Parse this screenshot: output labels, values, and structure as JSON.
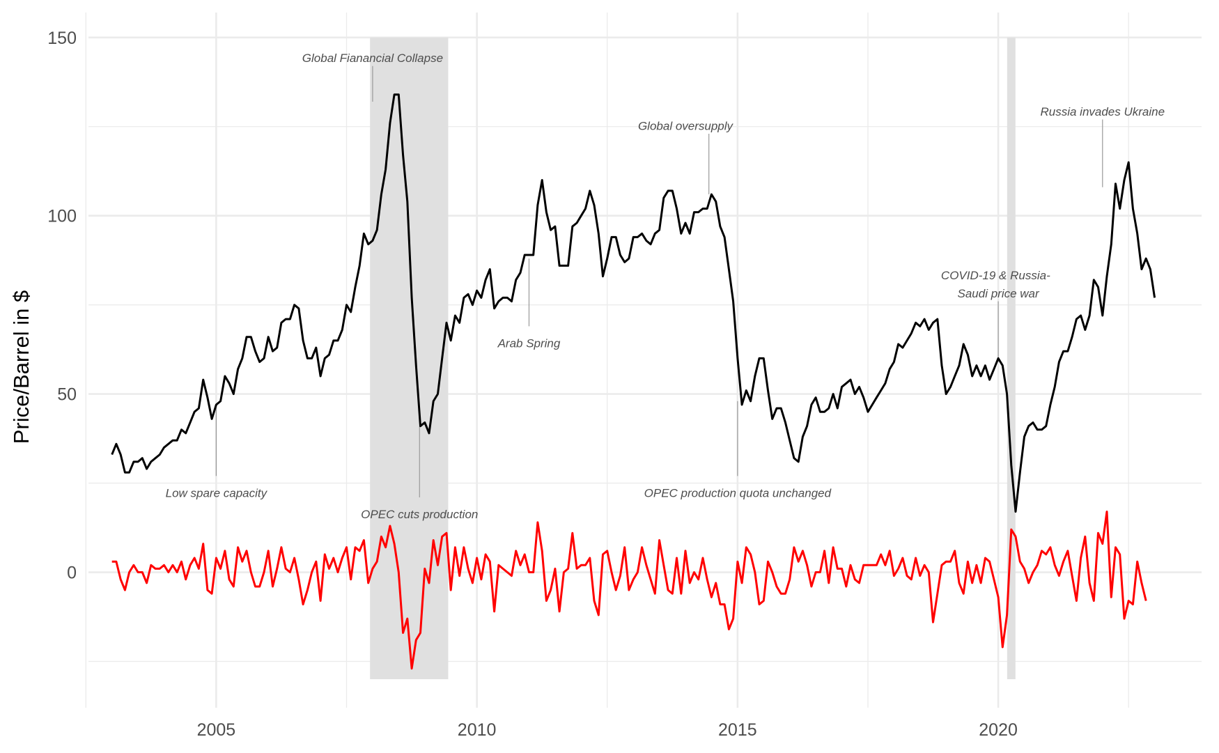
{
  "chart_data": {
    "type": "line",
    "title": "",
    "xlabel": "",
    "ylabel": "Price/Barrel in $",
    "xlim": [
      2002.55,
      2023.9
    ],
    "ylim": [
      -38,
      157
    ],
    "x_ticks": [
      2005,
      2010,
      2015,
      2020
    ],
    "x_tick_labels": [
      "2005",
      "2010",
      "2015",
      "2020"
    ],
    "x_minor_ticks": [
      2002.5,
      2007.5,
      2012.5,
      2017.5,
      2022.5
    ],
    "y_ticks": [
      0,
      50,
      100,
      150
    ],
    "y_tick_labels": [
      "0",
      "50",
      "100",
      "150"
    ],
    "y_minor_ticks": [
      -25,
      25,
      75,
      125
    ],
    "grid": true,
    "legend": "none",
    "colors": {
      "price": "#000000",
      "change": "#ff0000",
      "shade": "#e0e0e0",
      "grid": "#ebebeb",
      "annotation": "#4d4d4d",
      "annotation_line": "#999999"
    },
    "shaded_periods": [
      {
        "x0": 2007.95,
        "x1": 2009.45,
        "y0": -30,
        "y1": 150
      },
      {
        "x0": 2020.17,
        "x1": 2020.33,
        "y0": -30,
        "y1": 150
      }
    ],
    "series": [
      {
        "type": "line",
        "x_start": 2003.0,
        "x_step": 0.083333,
        "values": [
          33,
          36,
          33,
          28,
          28,
          31,
          31,
          32,
          29,
          31,
          32,
          33,
          35,
          36,
          37,
          37,
          40,
          39,
          42,
          45,
          46,
          54,
          49,
          43,
          47,
          48,
          55,
          53,
          50,
          57,
          60,
          66,
          66,
          62,
          59,
          60,
          66,
          62,
          63,
          70,
          71,
          71,
          75,
          74,
          65,
          60,
          60,
          63,
          55,
          60,
          61,
          65,
          65,
          68,
          75,
          73,
          80,
          86,
          95,
          92,
          93,
          96,
          106,
          113,
          126,
          134,
          134,
          117,
          104,
          77,
          58,
          41,
          42,
          39,
          48,
          50,
          60,
          70,
          65,
          72,
          70,
          77,
          78,
          75,
          79,
          77,
          82,
          85,
          74,
          76,
          77,
          77,
          76,
          82,
          84,
          89,
          89,
          89,
          103,
          110,
          101,
          96,
          97,
          86,
          86,
          86,
          97,
          98,
          100,
          102,
          107,
          103,
          95,
          83,
          88,
          94,
          94,
          89,
          87,
          88,
          94,
          94,
          95,
          93,
          92,
          95,
          96,
          105,
          107,
          107,
          102,
          95,
          98,
          95,
          101,
          101,
          102,
          102,
          106,
          104,
          97,
          94,
          85,
          76,
          60,
          47,
          51,
          48,
          55,
          60,
          60,
          51,
          43,
          46,
          46,
          42,
          37,
          32,
          31,
          38,
          41,
          47,
          49,
          45,
          45,
          46,
          50,
          46,
          52,
          53,
          54,
          50,
          52,
          49,
          45,
          47,
          49,
          51,
          53,
          57,
          59,
          64,
          63,
          65,
          67,
          70,
          69,
          71,
          68,
          70,
          71,
          58,
          50,
          52,
          55,
          58,
          64,
          61,
          55,
          58,
          55,
          58,
          54,
          57,
          60,
          58,
          50,
          30,
          17,
          28,
          38,
          41,
          42,
          40,
          40,
          41,
          47,
          52,
          59,
          62,
          62,
          66,
          71,
          72,
          68,
          72,
          82,
          80,
          72,
          83,
          92,
          109,
          102,
          110,
          115,
          102,
          95,
          85,
          88,
          85,
          77
        ]
      },
      {
        "type": "line",
        "x_start": 2003.0,
        "x_step": 0.083333,
        "values": [
          3,
          3,
          -2,
          -5,
          0,
          2,
          0,
          0,
          -3,
          2,
          1,
          1,
          2,
          0,
          2,
          0,
          3,
          -2,
          2,
          4,
          1,
          8,
          -5,
          -6,
          4,
          1,
          6,
          -2,
          -4,
          7,
          3,
          6,
          0,
          -4,
          -4,
          0,
          6,
          -4,
          1,
          7,
          1,
          0,
          4,
          -2,
          -9,
          -5,
          0,
          3,
          -8,
          5,
          1,
          4,
          0,
          4,
          7,
          -2,
          7,
          6,
          9,
          -3,
          1,
          3,
          10,
          7,
          13,
          8,
          0,
          -17,
          -13,
          -27,
          -19,
          -17,
          1,
          -3,
          9,
          2,
          10,
          11,
          -5,
          7,
          -1,
          7,
          1,
          -3,
          4,
          -2,
          5,
          3,
          -11,
          2,
          1,
          0,
          -1,
          6,
          2,
          5,
          0,
          0,
          14,
          6,
          -8,
          -5,
          1,
          -11,
          0,
          1,
          11,
          1,
          2,
          2,
          4,
          -8,
          -12,
          5,
          6,
          0,
          -5,
          -1,
          7,
          -5,
          -2,
          0,
          7,
          2,
          -2,
          -6,
          9,
          2,
          -5,
          -6,
          4,
          -6,
          6,
          -3,
          0,
          -2,
          4,
          -2,
          -7,
          -3,
          -9,
          -9,
          -16,
          -13,
          3,
          -3,
          7,
          5,
          0,
          -9,
          -8,
          3,
          0,
          -4,
          -6,
          -6,
          -2,
          7,
          3,
          6,
          2,
          -4,
          0,
          0,
          6,
          -3,
          7,
          1,
          1,
          -4,
          2,
          -2,
          -3,
          2,
          2,
          2,
          2,
          5,
          2,
          6,
          -1,
          1,
          4,
          -1,
          -2,
          4,
          -1,
          2,
          0,
          -14,
          -6,
          2,
          3,
          3,
          6,
          -3,
          -6,
          3,
          -3,
          2,
          -3,
          4,
          3,
          -2,
          -7,
          -21,
          -12,
          12,
          10,
          3,
          1,
          -3,
          0,
          2,
          6,
          5,
          7,
          2,
          -1,
          3,
          6,
          -1,
          -8,
          4,
          10,
          -3,
          -8,
          11,
          8,
          17,
          -7,
          7,
          5,
          -13,
          -8,
          -9,
          3,
          -3,
          -8
        ]
      }
    ],
    "annotations": [
      {
        "label": "Global Fianancial Collapse",
        "x": 2008.0,
        "y_text": 144,
        "line": [
          2008.0,
          142,
          2008.0,
          132
        ]
      },
      {
        "label": "Global oversupply",
        "x": 2014.0,
        "y_text": 125,
        "line": [
          2014.45,
          123,
          2014.45,
          106
        ]
      },
      {
        "label": "Russia invades Ukraine",
        "x": 2022.0,
        "y_text": 129,
        "line": [
          2022.0,
          127,
          2022.0,
          108
        ]
      },
      {
        "label": "COVID-19 & Russia-",
        "x": 2019.95,
        "y_text": 83,
        "line": null
      },
      {
        "label": "Saudi price war",
        "x": 2020.0,
        "y_text": 78,
        "line": [
          2020.0,
          76,
          2020.0,
          59
        ]
      },
      {
        "label": "Arab Spring",
        "x": 2011.0,
        "y_text": 64,
        "line": [
          2011.0,
          69,
          2011.0,
          88
        ]
      },
      {
        "label": "Low spare capacity",
        "x": 2005.0,
        "y_text": 22,
        "line": [
          2005.0,
          27,
          2005.0,
          47
        ]
      },
      {
        "label": "OPEC production quota unchanged",
        "x": 2015.0,
        "y_text": 22,
        "line": [
          2015.0,
          27,
          2015.0,
          48
        ]
      },
      {
        "label": "OPEC cuts production",
        "x": 2008.9,
        "y_text": 16,
        "line": [
          2008.9,
          21,
          2008.9,
          41
        ]
      }
    ]
  }
}
